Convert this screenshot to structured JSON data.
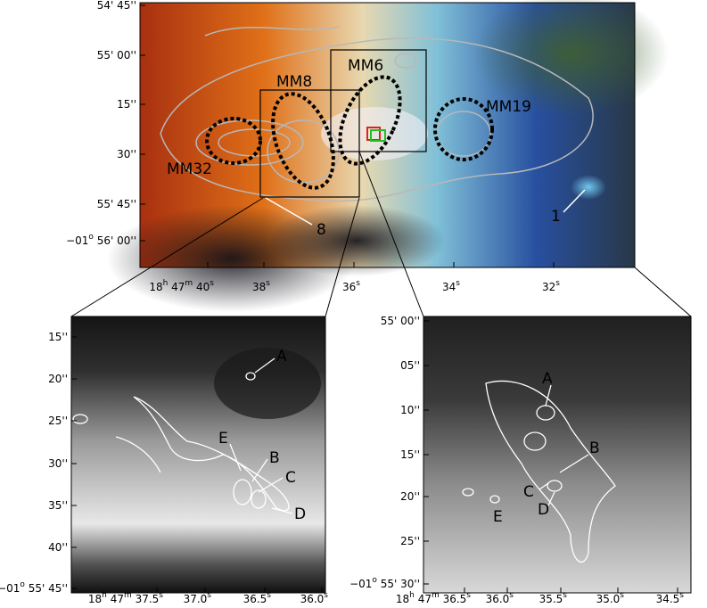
{
  "top_panel": {
    "y_tick_labels": [
      [
        "54' 45''"
      ],
      [
        "55' 00''"
      ],
      [
        "15''"
      ],
      [
        "30''"
      ],
      [
        "55' 45''"
      ],
      [
        "−01",
        "o",
        " 56' 00''"
      ]
    ],
    "x_tick_labels": [
      [
        "18",
        "h",
        " 47",
        "m",
        " 40",
        "s"
      ],
      [
        "38",
        "s"
      ],
      [
        "36",
        "s"
      ],
      [
        "34",
        "s"
      ],
      [
        "32",
        "s"
      ]
    ],
    "region_labels": [
      "MM8",
      "MM6",
      "MM19",
      "MM32"
    ],
    "source_labels": [
      "1",
      "8"
    ]
  },
  "bottom_left": {
    "y_tick_labels": [
      [
        "15''"
      ],
      [
        "20''"
      ],
      [
        "25''"
      ],
      [
        "30''"
      ],
      [
        "35''"
      ],
      [
        "40''"
      ],
      [
        "−01",
        "o",
        " 55' 45''"
      ]
    ],
    "x_tick_labels": [
      [
        "18",
        "h",
        " 47",
        "m",
        " 37.5",
        "s"
      ],
      [
        "37.0",
        "s"
      ],
      [
        "36.5",
        "s"
      ],
      [
        "36.0",
        "s"
      ]
    ],
    "source_labels": [
      "A",
      "B",
      "C",
      "D",
      "E"
    ]
  },
  "bottom_right": {
    "y_tick_labels": [
      [
        "55' 00''"
      ],
      [
        "05''"
      ],
      [
        "10''"
      ],
      [
        "15''"
      ],
      [
        "20''"
      ],
      [
        "25''"
      ],
      [
        "−01",
        "o",
        " 55' 30''"
      ]
    ],
    "x_tick_labels": [
      [
        "18",
        "h",
        " 47",
        "m",
        " 36.5",
        "s"
      ],
      [
        "36.0",
        "s"
      ],
      [
        "35.5",
        "s"
      ],
      [
        "35.0",
        "s"
      ],
      [
        "34.5",
        "s"
      ]
    ],
    "source_labels": [
      "A",
      "B",
      "C",
      "D",
      "E"
    ]
  }
}
